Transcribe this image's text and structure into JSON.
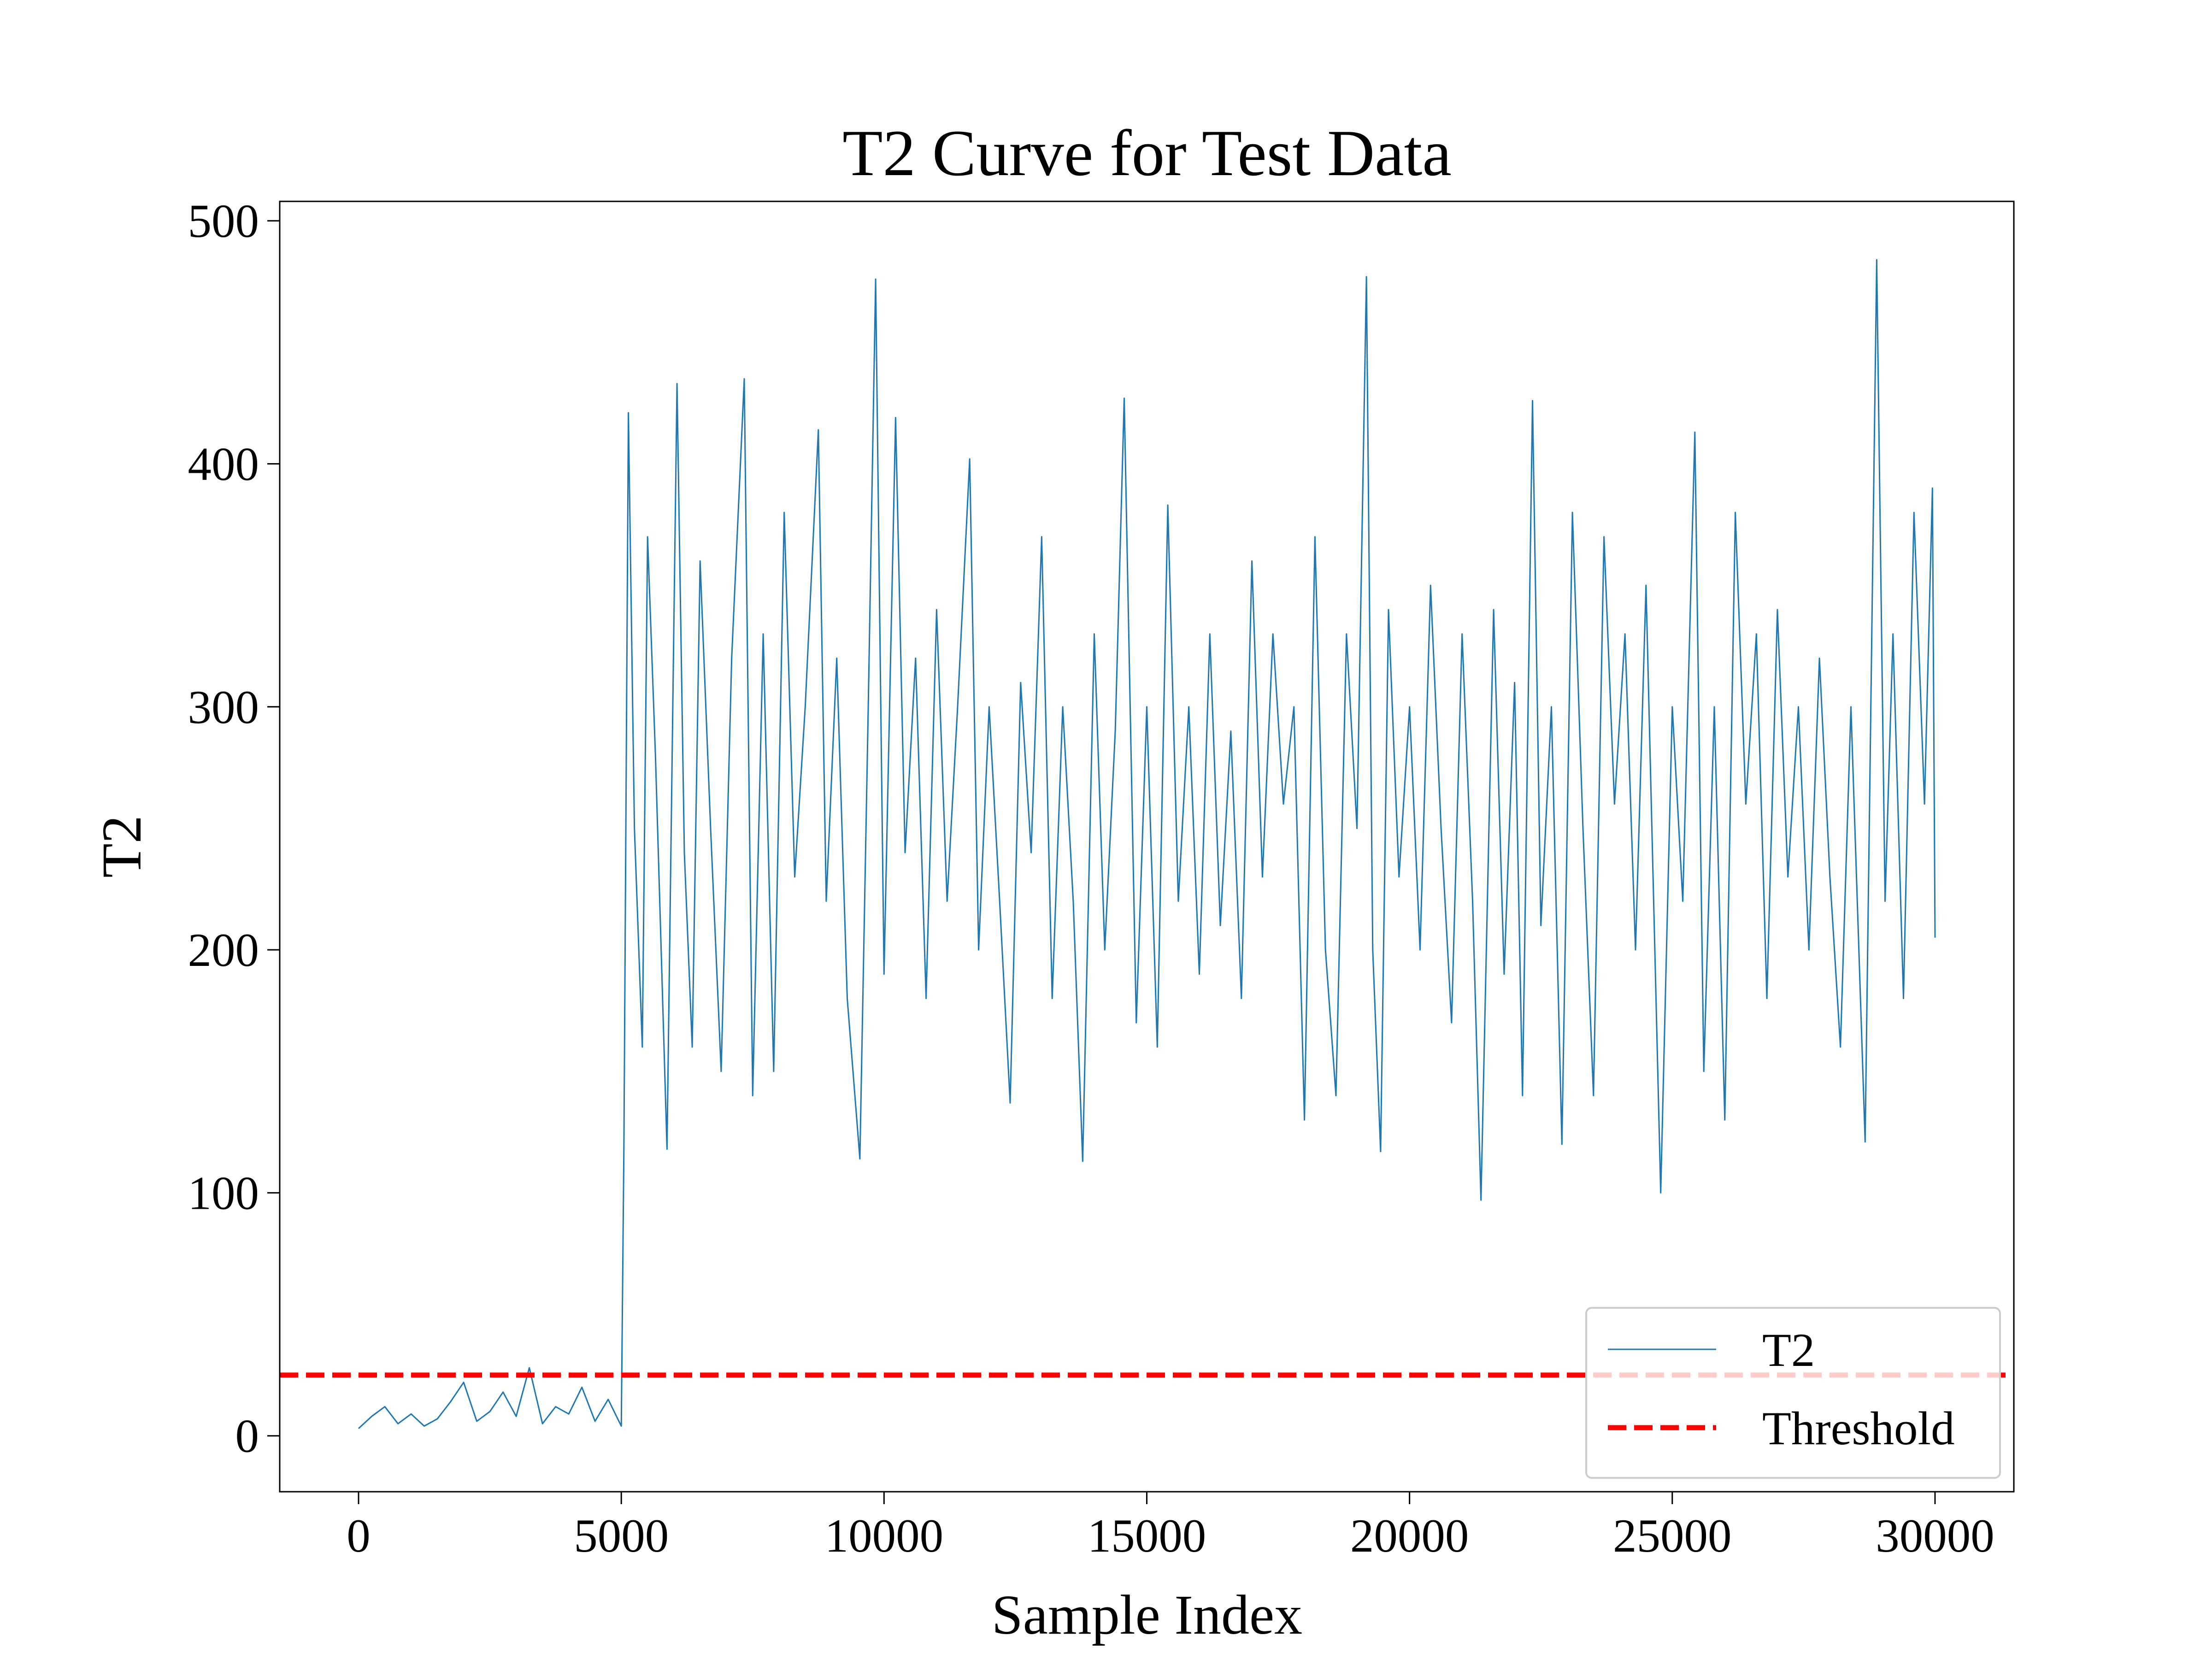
{
  "chart_data": {
    "type": "line",
    "title": "T2 Curve for Test Data",
    "x_label": "Sample Index",
    "y_label": "T2",
    "x": [
      0,
      250,
      500,
      750,
      1000,
      1250,
      1500,
      1750,
      2000,
      2250,
      2500,
      2750,
      3000,
      3250,
      3500,
      3750,
      4000,
      4250,
      4500,
      4750,
      5000,
      5050,
      5135,
      5250,
      5400,
      5500,
      5650,
      5870,
      6060,
      6200,
      6350,
      6500,
      6700,
      6900,
      7100,
      7340,
      7500,
      7700,
      7900,
      8100,
      8300,
      8500,
      8750,
      8900,
      9100,
      9300,
      9540,
      9700,
      9840,
      10000,
      10220,
      10400,
      10600,
      10800,
      11000,
      11200,
      11400,
      11630,
      11800,
      12000,
      12200,
      12400,
      12600,
      12800,
      13000,
      13200,
      13400,
      13600,
      13780,
      14000,
      14200,
      14400,
      14570,
      14800,
      15000,
      15200,
      15400,
      15600,
      15800,
      16000,
      16200,
      16400,
      16600,
      16800,
      17000,
      17200,
      17400,
      17600,
      17800,
      18000,
      18200,
      18400,
      18600,
      18800,
      19000,
      19180,
      19300,
      19450,
      19600,
      19800,
      20000,
      20200,
      20400,
      20600,
      20800,
      21000,
      21200,
      21360,
      21600,
      21800,
      22000,
      22150,
      22340,
      22500,
      22700,
      22900,
      23100,
      23300,
      23500,
      23700,
      23900,
      24100,
      24300,
      24500,
      24780,
      25000,
      25200,
      25430,
      25600,
      25800,
      26000,
      26200,
      26400,
      26600,
      26800,
      27000,
      27200,
      27400,
      27600,
      27800,
      28000,
      28200,
      28400,
      28670,
      28890,
      29050,
      29200,
      29400,
      29600,
      29800,
      29950,
      30000
    ],
    "series": [
      {
        "name": "T2",
        "color": "#1f77b4",
        "values": [
          3,
          8,
          12,
          5,
          9,
          4,
          7,
          14,
          22,
          6,
          10,
          18,
          8,
          28,
          5,
          12,
          9,
          20,
          6,
          15,
          4,
          120,
          421,
          250,
          160,
          370,
          280,
          118,
          433,
          240,
          160,
          360,
          250,
          150,
          320,
          435,
          140,
          330,
          150,
          380,
          230,
          300,
          414,
          220,
          320,
          180,
          114,
          300,
          476,
          190,
          419,
          240,
          320,
          180,
          340,
          220,
          300,
          402,
          200,
          300,
          220,
          137,
          310,
          240,
          370,
          180,
          300,
          220,
          113,
          330,
          200,
          290,
          427,
          170,
          300,
          160,
          383,
          220,
          300,
          190,
          330,
          210,
          290,
          180,
          360,
          230,
          330,
          260,
          300,
          130,
          370,
          200,
          140,
          330,
          250,
          477,
          200,
          117,
          340,
          230,
          300,
          200,
          350,
          250,
          170,
          330,
          220,
          97,
          340,
          190,
          310,
          140,
          426,
          210,
          300,
          120,
          380,
          250,
          140,
          370,
          260,
          330,
          200,
          350,
          100,
          300,
          220,
          413,
          150,
          300,
          130,
          380,
          260,
          330,
          180,
          340,
          230,
          300,
          200,
          320,
          230,
          160,
          300,
          121,
          484,
          220,
          330,
          180,
          380,
          260,
          390,
          205
        ]
      }
    ],
    "threshold": {
      "name": "Threshold",
      "value": 25,
      "color": "#ff0000"
    },
    "xlim": [
      -1500,
      31500
    ],
    "xticks": [
      0,
      5000,
      10000,
      15000,
      20000,
      25000,
      30000
    ],
    "ylim": [
      -23,
      508
    ],
    "yticks": [
      0,
      100,
      200,
      300,
      400,
      500
    ],
    "legend": "lower right",
    "grid": false
  }
}
